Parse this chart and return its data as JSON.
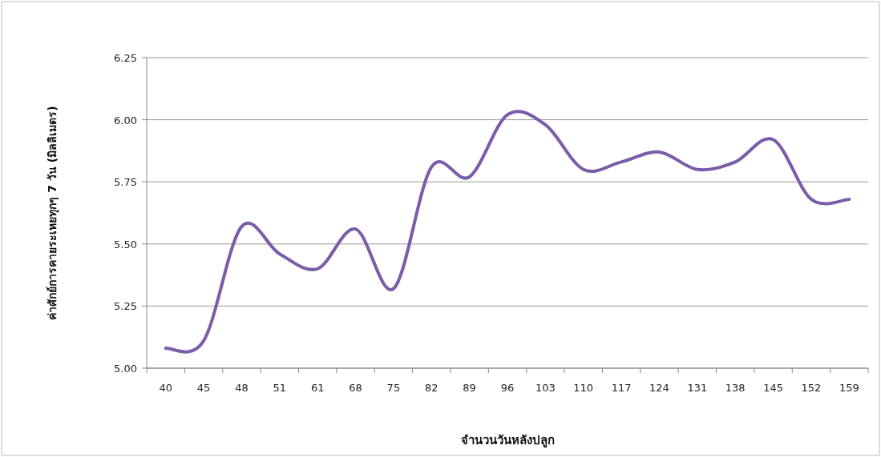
{
  "chart_data": {
    "type": "line",
    "xlabel": "จำนวนวันหลังปลูก",
    "ylabel": "ค่าศักย์การคายระเหยทุกๆ 7 วัน (มิลลิเมตร)",
    "categories": [
      "40",
      "45",
      "48",
      "51",
      "61",
      "68",
      "75",
      "82",
      "89",
      "96",
      "103",
      "110",
      "117",
      "124",
      "131",
      "138",
      "145",
      "152",
      "159"
    ],
    "series": [
      {
        "color": "#7a5ca8",
        "values": [
          5.08,
          5.11,
          5.57,
          5.46,
          5.4,
          5.56,
          5.32,
          5.81,
          5.77,
          6.02,
          5.98,
          5.8,
          5.83,
          5.87,
          5.8,
          5.83,
          5.92,
          5.68,
          5.68
        ]
      }
    ],
    "ylim": [
      5.0,
      6.25
    ],
    "yticks": [
      {
        "value": 5.0,
        "label": "5.00"
      },
      {
        "value": 5.25,
        "label": "5.25"
      },
      {
        "value": 5.5,
        "label": "5.50"
      },
      {
        "value": 5.75,
        "label": "5.75"
      },
      {
        "value": 6.0,
        "label": "6.00"
      },
      {
        "value": 6.25,
        "label": "6.25"
      }
    ],
    "grid": "y",
    "marker": "none",
    "line_style": "solid"
  }
}
